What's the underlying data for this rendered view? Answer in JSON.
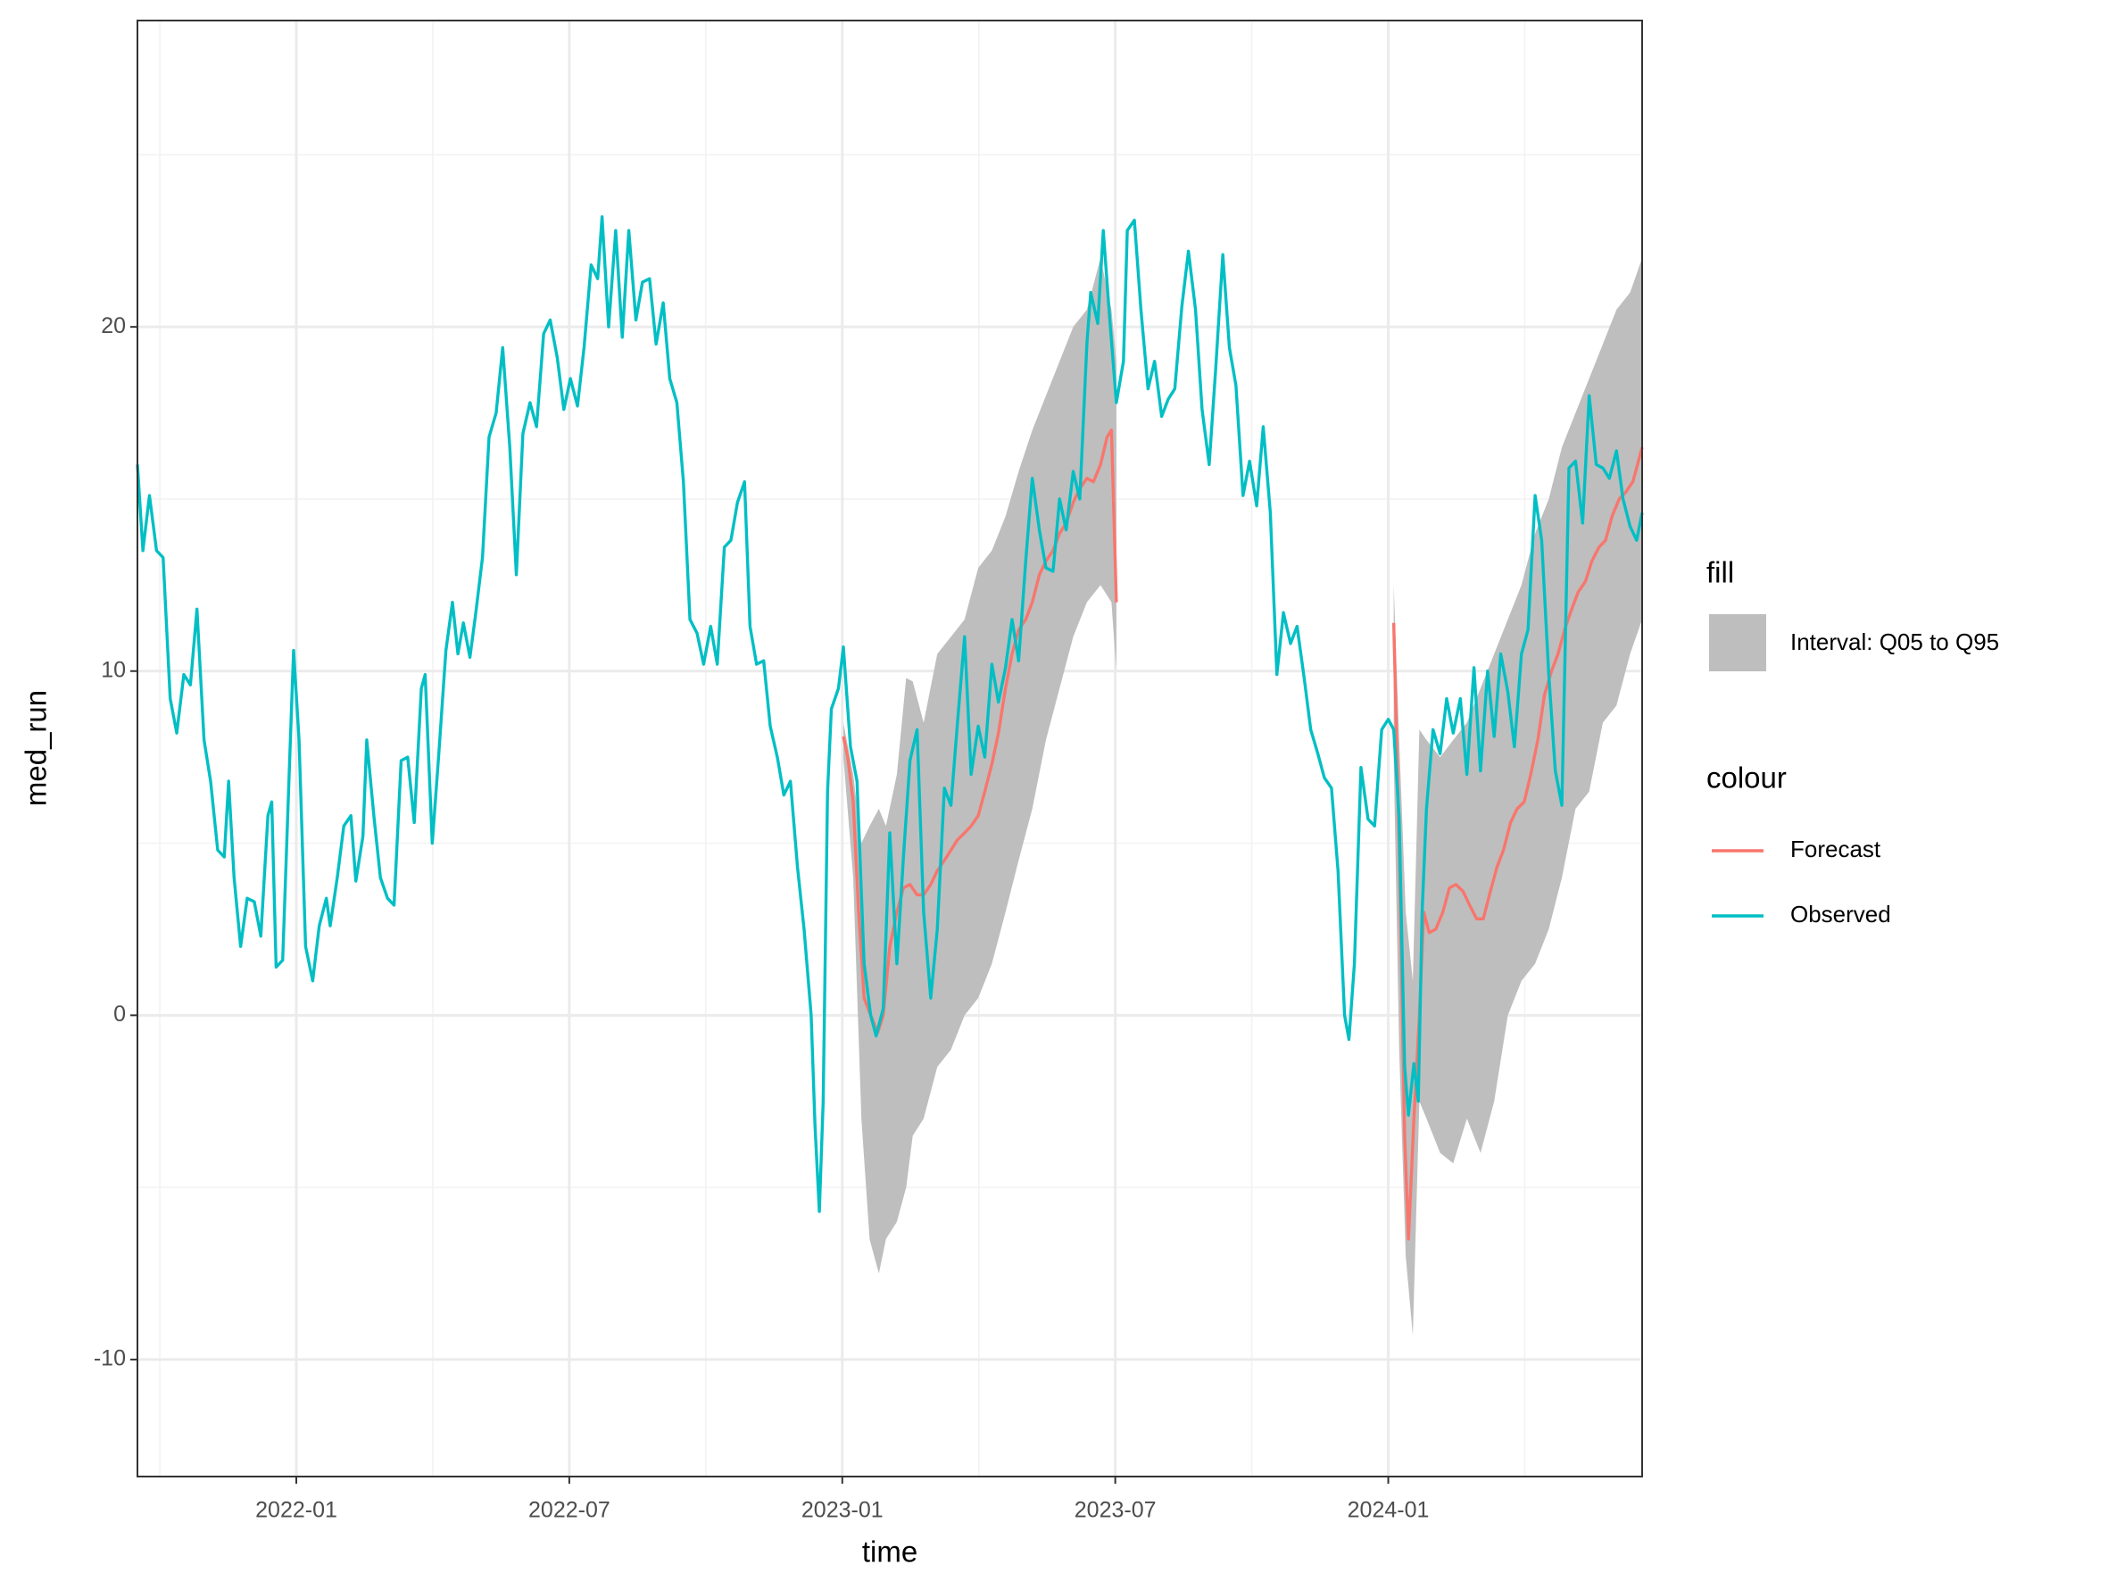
{
  "chart_data": {
    "type": "line",
    "x_label": "time",
    "y_label": "med_run",
    "xlim": [
      2021.709,
      2024.465
    ],
    "xticks": [
      {
        "value": 2022.0,
        "label": "2022-01"
      },
      {
        "value": 2022.5,
        "label": "2022-07"
      },
      {
        "value": 2023.0,
        "label": "2023-01"
      },
      {
        "value": 2023.5,
        "label": "2023-07"
      },
      {
        "value": 2024.0,
        "label": "2024-01"
      }
    ],
    "ylim": [
      -13.4,
      28.9
    ],
    "yticks": [
      -10,
      0,
      10,
      20
    ],
    "grid": true,
    "fill_legend_title": "fill",
    "colour_legend_title": "colour",
    "bands": [
      {
        "name": "Interval: Q05 to Q95",
        "color": "#bebebe",
        "x": [
          2023.002,
          2023.02,
          2023.035,
          2023.05,
          2023.067,
          2023.08,
          2023.1,
          2023.117,
          2023.129,
          2023.149,
          2023.174,
          2023.199,
          2023.224,
          2023.249,
          2023.274,
          2023.299,
          2023.323,
          2023.348,
          2023.373,
          2023.398,
          2023.423,
          2023.448,
          2023.473,
          2023.493,
          2023.502,
          null,
          2024.01,
          2024.02,
          2024.032,
          2024.045,
          2024.057,
          2024.07,
          2024.095,
          2024.119,
          2024.144,
          2024.169,
          2024.194,
          2024.219,
          2024.244,
          2024.269,
          2024.294,
          2024.318,
          2024.343,
          2024.368,
          2024.393,
          2024.418,
          2024.443,
          2024.465
        ],
        "upper": [
          8.5,
          7,
          5,
          5.5,
          6,
          5.5,
          7,
          9.8,
          9.7,
          8.5,
          10.5,
          11,
          11.5,
          13,
          13.5,
          14.5,
          15.8,
          17,
          18,
          19,
          20,
          20.5,
          22,
          20.5,
          19,
          null,
          12.5,
          8,
          3,
          1,
          8.3,
          8,
          7.5,
          8,
          8.5,
          9.5,
          10.5,
          11.5,
          12.5,
          14,
          15,
          16.5,
          17.5,
          18.5,
          19.5,
          20.5,
          21,
          22
        ],
        "lower": [
          7.5,
          4,
          -3,
          -6.5,
          -7.5,
          -6.5,
          -6,
          -5,
          -3.5,
          -3,
          -1.5,
          -1,
          0,
          0.5,
          1.5,
          3,
          4.5,
          6,
          8,
          9.5,
          11,
          12,
          12.5,
          12,
          10,
          null,
          7.5,
          -1,
          -7,
          -9.3,
          -2.5,
          -3,
          -4,
          -4.3,
          -3,
          -4,
          -2.5,
          0,
          1,
          1.5,
          2.5,
          4,
          6,
          6.5,
          8.5,
          9,
          10.5,
          11.5
        ]
      }
    ],
    "series": [
      {
        "name": "Forecast",
        "color": "#F8766D",
        "x": [
          2023.002,
          2023.01,
          2023.02,
          2023.03,
          2023.04,
          2023.052,
          2023.065,
          2023.075,
          2023.087,
          2023.1,
          2023.112,
          2023.124,
          2023.137,
          2023.149,
          2023.162,
          2023.174,
          2023.187,
          2023.199,
          2023.211,
          2023.224,
          2023.236,
          2023.249,
          2023.261,
          2023.274,
          2023.286,
          2023.299,
          2023.311,
          2023.323,
          2023.336,
          2023.348,
          2023.361,
          2023.373,
          2023.386,
          2023.398,
          2023.41,
          2023.423,
          2023.435,
          2023.448,
          2023.46,
          2023.473,
          2023.485,
          2023.493,
          2023.502,
          null,
          2024.01,
          2024.02,
          2024.03,
          2024.037,
          2024.047,
          2024.057,
          2024.065,
          2024.075,
          2024.087,
          2024.1,
          2024.112,
          2024.124,
          2024.137,
          2024.149,
          2024.162,
          2024.174,
          2024.187,
          2024.199,
          2024.211,
          2024.224,
          2024.236,
          2024.249,
          2024.261,
          2024.274,
          2024.286,
          2024.299,
          2024.311,
          2024.323,
          2024.336,
          2024.348,
          2024.361,
          2024.373,
          2024.386,
          2024.398,
          2024.41,
          2024.423,
          2024.435,
          2024.448,
          2024.465
        ],
        "values": [
          8.1,
          7.5,
          6.2,
          3,
          0.5,
          0,
          -0.5,
          0,
          2,
          3,
          3.7,
          3.8,
          3.5,
          3.5,
          3.8,
          4.2,
          4.5,
          4.8,
          5.1,
          5.3,
          5.5,
          5.8,
          6.5,
          7.3,
          8.2,
          9.5,
          10.5,
          11.2,
          11.5,
          12,
          12.8,
          13.2,
          13.5,
          14,
          14.3,
          14.9,
          15.3,
          15.6,
          15.5,
          16,
          16.8,
          17,
          12,
          null,
          11.4,
          5,
          -3.5,
          -6.5,
          -3,
          0,
          3,
          2.4,
          2.5,
          3,
          3.7,
          3.8,
          3.6,
          3.2,
          2.8,
          2.8,
          3.6,
          4.3,
          4.8,
          5.6,
          6,
          6.2,
          7,
          8,
          9.3,
          10,
          10.5,
          11.2,
          11.8,
          12.3,
          12.6,
          13.2,
          13.6,
          13.8,
          14.5,
          15,
          15.2,
          15.5,
          16.5
        ]
      },
      {
        "name": "Observed",
        "color": "#00BFC4",
        "x": [
          2021.709,
          2021.719,
          2021.731,
          2021.744,
          2021.756,
          2021.769,
          2021.781,
          2021.794,
          2021.806,
          2021.818,
          2021.831,
          2021.843,
          2021.856,
          2021.868,
          2021.876,
          2021.886,
          2021.898,
          2021.91,
          2021.923,
          2021.935,
          2021.948,
          2021.955,
          2021.963,
          2021.975,
          2021.988,
          2021.995,
          2022.005,
          2022.017,
          2022.03,
          2022.042,
          2022.055,
          2022.062,
          2022.075,
          2022.087,
          2022.1,
          2022.109,
          2022.122,
          2022.129,
          2022.142,
          2022.154,
          2022.167,
          2022.179,
          2022.192,
          2022.204,
          2022.216,
          2022.229,
          2022.236,
          2022.249,
          2022.261,
          2022.274,
          2022.286,
          2022.296,
          2022.306,
          2022.318,
          2022.328,
          2022.341,
          2022.353,
          2022.366,
          2022.378,
          2022.391,
          2022.403,
          2022.415,
          2022.428,
          2022.44,
          2022.453,
          2022.465,
          2022.478,
          2022.49,
          2022.502,
          2022.515,
          2022.527,
          2022.54,
          2022.552,
          2022.56,
          2022.572,
          2022.585,
          2022.597,
          2022.609,
          2022.622,
          2022.634,
          2022.647,
          2022.659,
          2022.672,
          2022.684,
          2022.697,
          2022.709,
          2022.721,
          2022.734,
          2022.746,
          2022.759,
          2022.771,
          2022.784,
          2022.796,
          2022.808,
          2022.821,
          2022.831,
          2022.843,
          2022.856,
          2022.868,
          2022.881,
          2022.893,
          2022.905,
          2022.918,
          2022.93,
          2022.943,
          2022.95,
          2022.958,
          2022.965,
          2022.973,
          2022.98,
          2022.993,
          2023.002,
          2023.015,
          2023.027,
          2023.04,
          2023.052,
          2023.062,
          2023.075,
          2023.087,
          2023.1,
          2023.112,
          2023.124,
          2023.137,
          2023.149,
          2023.162,
          2023.174,
          2023.187,
          2023.199,
          2023.211,
          2023.224,
          2023.236,
          2023.249,
          2023.261,
          2023.274,
          2023.286,
          2023.299,
          2023.311,
          2023.323,
          2023.336,
          2023.348,
          2023.361,
          2023.373,
          2023.386,
          2023.398,
          2023.41,
          2023.423,
          2023.435,
          2023.448,
          2023.455,
          2023.468,
          2023.478,
          2023.49,
          2023.502,
          2023.515,
          2023.522,
          2023.535,
          2023.547,
          2023.56,
          2023.572,
          2023.585,
          2023.597,
          2023.609,
          2023.622,
          2023.634,
          2023.647,
          2023.659,
          2023.672,
          2023.684,
          2023.697,
          2023.709,
          2023.721,
          2023.734,
          2023.746,
          2023.759,
          2023.771,
          2023.784,
          2023.796,
          2023.808,
          2023.821,
          2023.833,
          2023.846,
          2023.858,
          2023.871,
          2023.883,
          2023.896,
          2023.908,
          2023.92,
          2023.928,
          2023.938,
          2023.95,
          2023.963,
          2023.975,
          2023.988,
          2024.0,
          2024.01,
          2024.02,
          2024.03,
          2024.037,
          2024.047,
          2024.055,
          2024.062,
          2024.07,
          2024.082,
          2024.095,
          2024.107,
          2024.119,
          2024.132,
          2024.144,
          2024.157,
          2024.169,
          2024.182,
          2024.194,
          2024.206,
          2024.219,
          2024.231,
          2024.244,
          2024.256,
          2024.269,
          2024.281,
          2024.294,
          2024.306,
          2024.318,
          2024.331,
          2024.343,
          2024.356,
          2024.368,
          2024.381,
          2024.393,
          2024.405,
          2024.418,
          2024.43,
          2024.443,
          2024.455,
          2024.465
        ],
        "values": [
          16,
          13.5,
          15.1,
          13.5,
          13.3,
          9.2,
          8.2,
          9.9,
          9.6,
          11.8,
          8,
          6.8,
          4.8,
          4.6,
          6.8,
          4,
          2,
          3.4,
          3.3,
          2.3,
          5.8,
          6.2,
          1.4,
          1.6,
          7.5,
          10.6,
          8,
          2,
          1,
          2.6,
          3.4,
          2.6,
          4,
          5.5,
          5.8,
          3.9,
          5.2,
          8,
          5.8,
          4,
          3.4,
          3.2,
          7.4,
          7.5,
          5.6,
          9.5,
          9.9,
          5,
          7.6,
          10.6,
          12,
          10.5,
          11.4,
          10.4,
          11.6,
          13.3,
          16.8,
          17.5,
          19.4,
          16.5,
          12.8,
          16.9,
          17.8,
          17.1,
          19.8,
          20.2,
          19.1,
          17.6,
          18.5,
          17.7,
          19.4,
          21.8,
          21.4,
          23.2,
          20,
          22.8,
          19.7,
          22.8,
          20.2,
          21.3,
          21.4,
          19.5,
          20.7,
          18.5,
          17.8,
          15.5,
          11.5,
          11.1,
          10.2,
          11.3,
          10.2,
          13.6,
          13.8,
          14.9,
          15.5,
          11.3,
          10.2,
          10.3,
          8.4,
          7.5,
          6.4,
          6.8,
          4.3,
          2.5,
          0,
          -3.2,
          -5.7,
          -2.5,
          6.5,
          8.9,
          9.5,
          10.7,
          7.8,
          6.8,
          1.5,
          0,
          -0.6,
          0.2,
          5.3,
          1.5,
          4.6,
          7.4,
          8.3,
          3,
          0.5,
          2.5,
          6.6,
          6.1,
          8.5,
          11,
          7,
          8.4,
          7.5,
          10.2,
          9.1,
          10.1,
          11.5,
          10.3,
          13.2,
          15.6,
          14.1,
          13,
          12.9,
          15,
          14.1,
          15.8,
          15,
          19.5,
          21,
          20.1,
          22.8,
          20.2,
          17.8,
          19,
          22.8,
          23.1,
          20.5,
          18.2,
          19,
          17.4,
          17.9,
          18.2,
          20.6,
          22.2,
          20.5,
          17.6,
          16,
          18.8,
          22.1,
          19.4,
          18.3,
          15.1,
          16.1,
          14.8,
          17.1,
          14.6,
          9.9,
          11.7,
          10.8,
          11.3,
          9.8,
          8.3,
          7.6,
          6.9,
          6.6,
          4.2,
          0,
          -0.7,
          1.5,
          7.2,
          5.7,
          5.5,
          8.3,
          8.6,
          8.3,
          5.7,
          -1.5,
          -2.9,
          -1.4,
          -2.5,
          3,
          6,
          8.3,
          7.6,
          9.2,
          8.2,
          9.2,
          7,
          10.1,
          7.1,
          10,
          8.1,
          10.5,
          9.4,
          7.8,
          10.5,
          11.2,
          15.1,
          13.8,
          9.9,
          7.1,
          6.1,
          15.9,
          16.1,
          14.3,
          18,
          16,
          15.9,
          15.6,
          16.4,
          15,
          14.2,
          13.8,
          14.6
        ]
      }
    ]
  }
}
